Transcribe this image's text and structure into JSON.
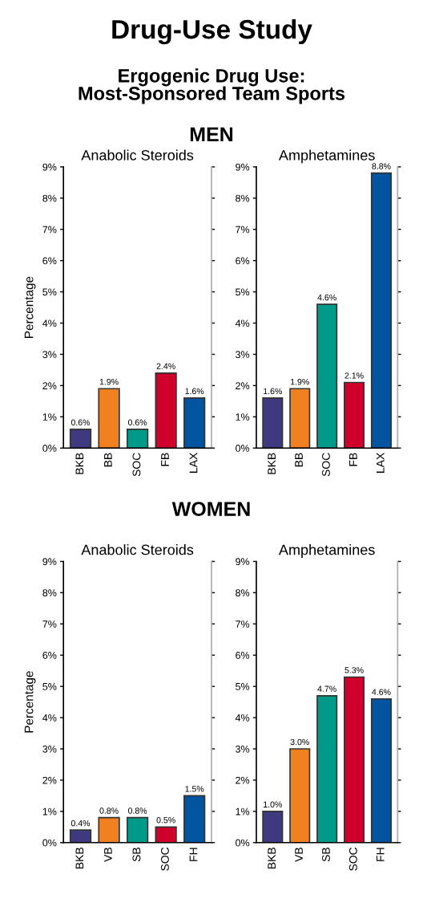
{
  "chart_data": [
    {
      "type": "bar",
      "title": "Anabolic Steroids",
      "ylabel": "Percentage",
      "annotations": [
        "Drug-Use Study",
        "Ergogenic Drug Use:\nMost-Sponsored Team Sports",
        "MEN"
      ],
      "categories": [
        "BKB",
        "BB",
        "SOC",
        "FB",
        "LAX"
      ],
      "values": [
        0.6,
        1.9,
        0.6,
        2.4,
        1.6
      ],
      "colors": [
        "#3f3a80",
        "#f08020",
        "#009a8a",
        "#d0002c",
        "#0054a0"
      ],
      "value_labels": [
        "0.6%",
        "1.9%",
        "0.6%",
        "2.4%",
        "1.6%"
      ],
      "ylim": [
        0,
        9
      ],
      "yticks": [
        {
          "value": 0,
          "label": "0%"
        },
        {
          "value": 1,
          "label": "1%"
        },
        {
          "value": 2,
          "label": "2%"
        },
        {
          "value": 3,
          "label": "3%"
        },
        {
          "value": 4,
          "label": "4%"
        },
        {
          "value": 5,
          "label": "5%"
        },
        {
          "value": 6,
          "label": "6%"
        },
        {
          "value": 7,
          "label": "7%"
        },
        {
          "value": 8,
          "label": "8%"
        },
        {
          "value": 9,
          "label": "9%"
        }
      ],
      "grid": false
    },
    {
      "type": "bar",
      "title": "Amphetamines",
      "categories": [
        "BKB",
        "BB",
        "SOC",
        "FB",
        "LAX"
      ],
      "values": [
        1.6,
        1.9,
        4.6,
        2.1,
        8.8
      ],
      "colors": [
        "#3f3a80",
        "#f08020",
        "#009a8a",
        "#d0002c",
        "#0054a0"
      ],
      "value_labels": [
        "1.6%",
        "1.9%",
        "4.6%",
        "2.1%",
        "8.8%"
      ],
      "ylim": [
        0,
        9
      ],
      "yticks": [
        {
          "value": 0,
          "label": "0%"
        },
        {
          "value": 1,
          "label": "1%"
        },
        {
          "value": 2,
          "label": "2%"
        },
        {
          "value": 3,
          "label": "3%"
        },
        {
          "value": 4,
          "label": "4%"
        },
        {
          "value": 5,
          "label": "5%"
        },
        {
          "value": 6,
          "label": "6%"
        },
        {
          "value": 7,
          "label": "7%"
        },
        {
          "value": 8,
          "label": "8%"
        },
        {
          "value": 9,
          "label": "9%"
        }
      ],
      "grid": false
    },
    {
      "type": "bar",
      "title": "Anabolic Steroids",
      "ylabel": "Percentage",
      "annotations": [
        "WOMEN"
      ],
      "categories": [
        "BKB",
        "VB",
        "SB",
        "SOC",
        "FH"
      ],
      "values": [
        0.4,
        0.8,
        0.8,
        0.5,
        1.5
      ],
      "colors": [
        "#3f3a80",
        "#f08020",
        "#009a8a",
        "#d0002c",
        "#0054a0"
      ],
      "value_labels": [
        "0.4%",
        "0.8%",
        "0.8%",
        "0.5%",
        "1.5%"
      ],
      "ylim": [
        0,
        9
      ],
      "yticks": [
        {
          "value": 0,
          "label": "0%"
        },
        {
          "value": 1,
          "label": "1%"
        },
        {
          "value": 2,
          "label": "2%"
        },
        {
          "value": 3,
          "label": "3%"
        },
        {
          "value": 4,
          "label": "4%"
        },
        {
          "value": 5,
          "label": "5%"
        },
        {
          "value": 6,
          "label": "6%"
        },
        {
          "value": 7,
          "label": "7%"
        },
        {
          "value": 8,
          "label": "8%"
        },
        {
          "value": 9,
          "label": "9%"
        }
      ],
      "grid": false
    },
    {
      "type": "bar",
      "title": "Amphetamines",
      "categories": [
        "BKB",
        "VB",
        "SB",
        "SOC",
        "FH"
      ],
      "values": [
        1.0,
        3.0,
        4.7,
        5.3,
        4.6
      ],
      "colors": [
        "#3f3a80",
        "#f08020",
        "#009a8a",
        "#d0002c",
        "#0054a0"
      ],
      "value_labels": [
        "1.0%",
        "3.0%",
        "4.7%",
        "5.3%",
        "4.6%"
      ],
      "ylim": [
        0,
        9
      ],
      "yticks": [
        {
          "value": 0,
          "label": "0%"
        },
        {
          "value": 1,
          "label": "1%"
        },
        {
          "value": 2,
          "label": "2%"
        },
        {
          "value": 3,
          "label": "3%"
        },
        {
          "value": 4,
          "label": "4%"
        },
        {
          "value": 5,
          "label": "5%"
        },
        {
          "value": 6,
          "label": "6%"
        },
        {
          "value": 7,
          "label": "7%"
        },
        {
          "value": 8,
          "label": "8%"
        },
        {
          "value": 9,
          "label": "9%"
        }
      ],
      "grid": false
    }
  ]
}
